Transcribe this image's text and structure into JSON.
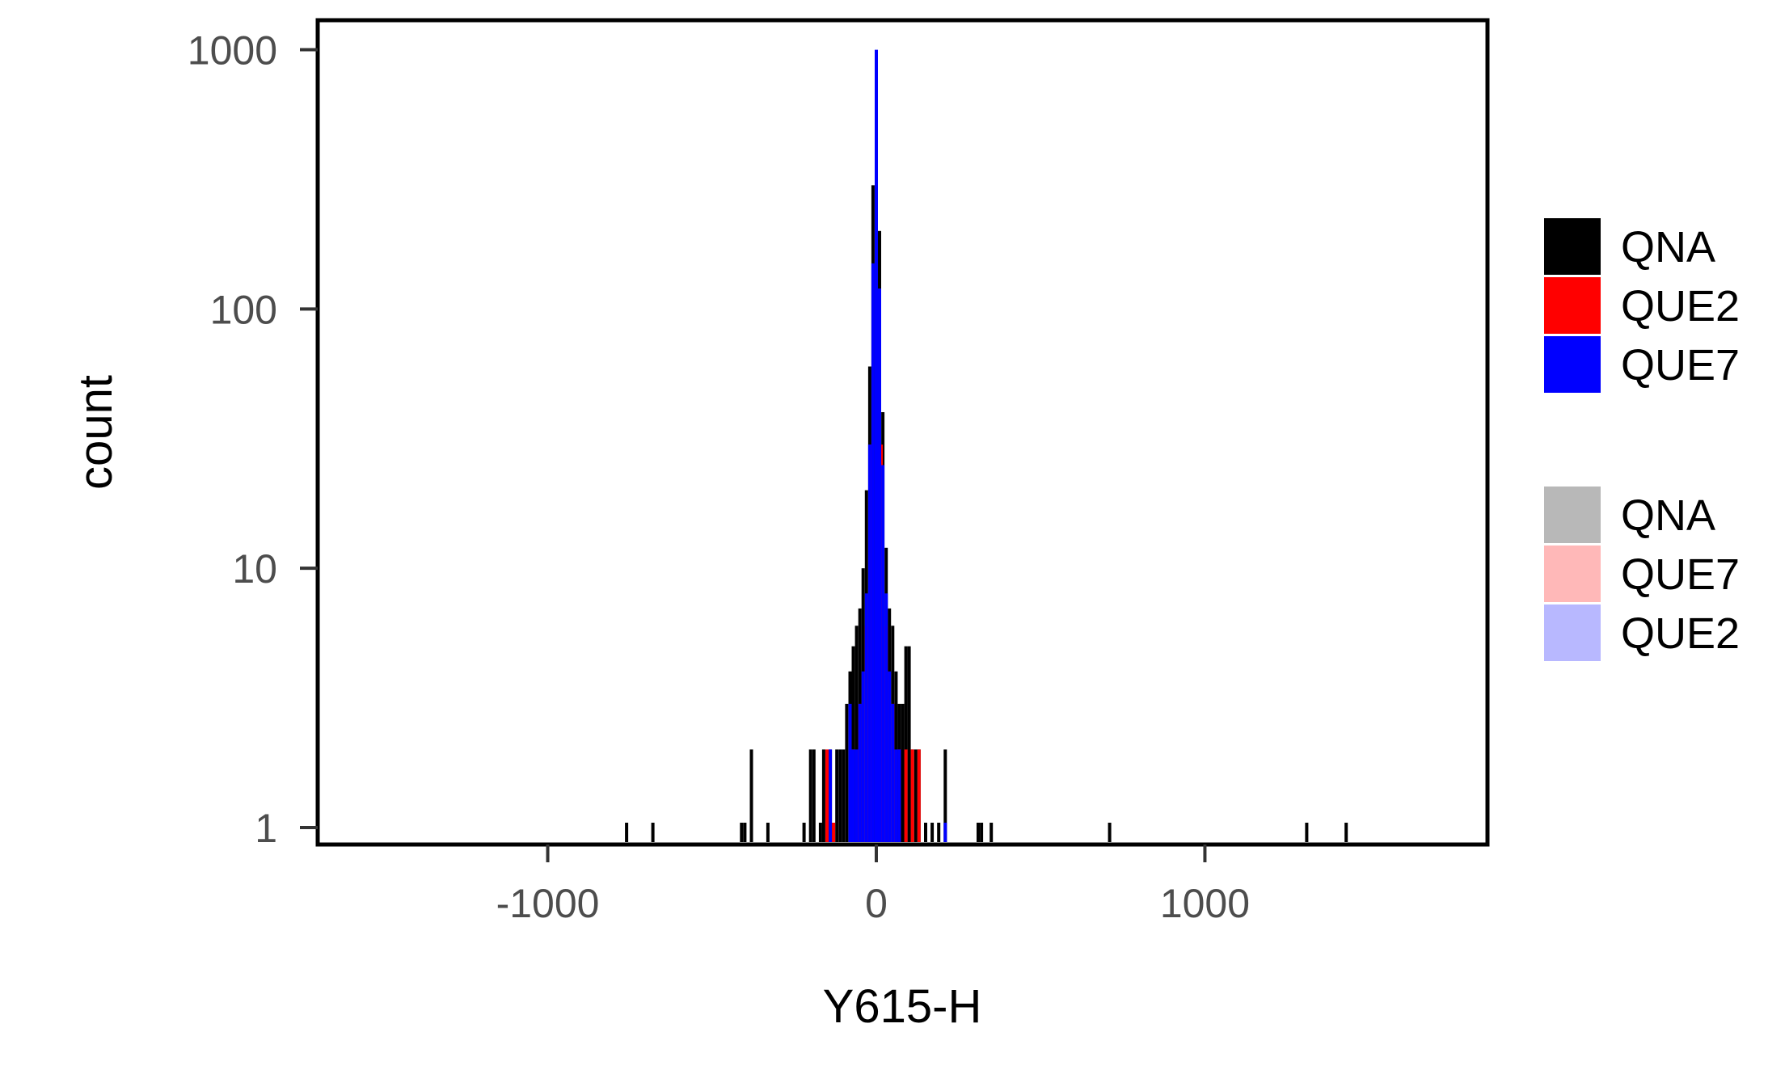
{
  "chart_data": {
    "type": "bar",
    "xlabel": "Y615-H",
    "ylabel": "count",
    "xlim": [
      -1700,
      1860
    ],
    "ylim": [
      0.86,
      1300
    ],
    "y_scale": "log",
    "x_ticks": [
      {
        "value": -1000,
        "label": "-1000"
      },
      {
        "value": 0,
        "label": "0"
      },
      {
        "value": 1000,
        "label": "1000"
      }
    ],
    "y_ticks": [
      {
        "value": 1,
        "label": "1"
      },
      {
        "value": 10,
        "label": "10"
      },
      {
        "value": 100,
        "label": "100"
      },
      {
        "value": 1000,
        "label": "1000"
      }
    ],
    "grid": false,
    "legend_position": "right",
    "legend": [
      {
        "label": "QNA",
        "color": "#000000"
      },
      {
        "label": "QUE2",
        "color": "#ff0000"
      },
      {
        "label": "QUE7",
        "color": "#0000ff"
      },
      {
        "label": "QNA",
        "color": "#b8b8b8"
      },
      {
        "label": "QUE7",
        "color": "#ffb8b8"
      },
      {
        "label": "QUE2",
        "color": "#b8b8ff"
      }
    ],
    "series": [
      {
        "color": "#000000",
        "bin_width": 4,
        "x": [
          -760,
          -680,
          -410,
          -400,
          -380,
          -330,
          -220,
          -200,
          -190,
          -170,
          -160,
          -140,
          -130,
          -120,
          -110,
          -100,
          -90,
          -80,
          -70,
          -60,
          -50,
          -40,
          -30,
          -20,
          -10,
          0,
          10,
          20,
          30,
          40,
          50,
          60,
          70,
          80,
          90,
          100,
          110,
          120,
          130,
          150,
          170,
          190,
          210,
          310,
          320,
          350,
          710,
          1310,
          1430
        ],
        "values": [
          1,
          1,
          1,
          1,
          2,
          1,
          1,
          2,
          2,
          1,
          2,
          2,
          1,
          2,
          2,
          2,
          3,
          4,
          5,
          6,
          7,
          10,
          20,
          60,
          300,
          900,
          200,
          40,
          12,
          7,
          6,
          4,
          3,
          3,
          5,
          5,
          2,
          2,
          2,
          1,
          1,
          1,
          2,
          1,
          1,
          1,
          1,
          1,
          1
        ]
      },
      {
        "color": "#ff0000",
        "bin_width": 4,
        "x": [
          -150,
          -130,
          -70,
          -50,
          -30,
          -15,
          0,
          15,
          30,
          50,
          70,
          90,
          110,
          130
        ],
        "values": [
          2,
          1,
          2,
          3,
          6,
          30,
          700,
          30,
          6,
          3,
          2,
          2,
          2,
          2
        ]
      },
      {
        "color": "#0000ff",
        "bin_width": 4,
        "x": [
          -140,
          -80,
          -70,
          -60,
          -50,
          -40,
          -30,
          -20,
          -10,
          0,
          10,
          20,
          30,
          40,
          50,
          60,
          70,
          210
        ],
        "values": [
          2,
          3,
          2,
          2,
          3,
          4,
          8,
          30,
          150,
          1000,
          120,
          25,
          8,
          4,
          3,
          2,
          2,
          1
        ]
      }
    ]
  }
}
